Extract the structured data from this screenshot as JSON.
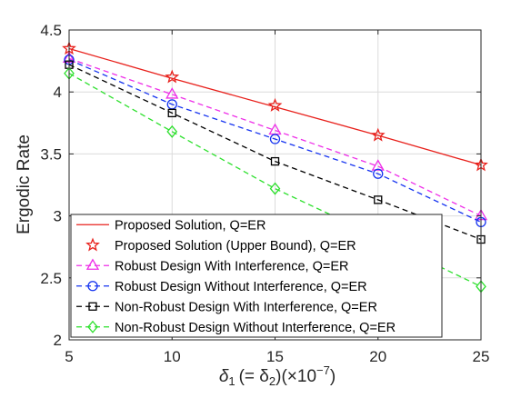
{
  "chart_data": {
    "type": "line",
    "xlabel_parts": {
      "main": "δ",
      "sub1": "1",
      "mid": "(= δ",
      "sub2": "2",
      "close": ")(×10",
      "sup": "−7",
      "end": ")"
    },
    "ylabel": "Ergodic Rate",
    "xlim": [
      5,
      25
    ],
    "ylim": [
      2,
      4.5
    ],
    "x_ticks": [
      5,
      10,
      15,
      20,
      25
    ],
    "y_ticks": [
      2,
      2.5,
      3,
      3.5,
      4,
      4.5
    ],
    "grid": true,
    "legend_position": "bottom-left",
    "x": [
      5,
      10,
      15,
      20,
      25
    ],
    "series": [
      {
        "name": "Proposed Solution, Q=ER",
        "values": [
          4.35,
          4.11,
          3.88,
          3.65,
          3.41
        ],
        "color": "#e8201b",
        "style": "solid",
        "marker": "none"
      },
      {
        "name": "Proposed Solution (Upper Bound), Q=ER",
        "values": [
          4.35,
          4.12,
          3.89,
          3.65,
          3.41
        ],
        "color": "#e8201b",
        "style": "none",
        "marker": "star"
      },
      {
        "name": "Robust Design With Interference, Q=ER",
        "values": [
          4.27,
          3.98,
          3.69,
          3.4,
          3.0
        ],
        "color": "#ee2ee8",
        "style": "dashed",
        "marker": "triangle"
      },
      {
        "name": "Robust Design Without Interference, Q=ER",
        "values": [
          4.26,
          3.9,
          3.62,
          3.34,
          2.95
        ],
        "color": "#1533f0",
        "style": "dashed",
        "marker": "circle"
      },
      {
        "name": "Non-Robust Design With Interference, Q=ER",
        "values": [
          4.22,
          3.83,
          3.44,
          3.13,
          2.81
        ],
        "color": "#000000",
        "style": "dashed",
        "marker": "square"
      },
      {
        "name": "Non-Robust Design Without Interference, Q=ER",
        "values": [
          4.15,
          3.68,
          3.22,
          2.83,
          2.43
        ],
        "color": "#2de02d",
        "style": "dashed",
        "marker": "diamond"
      }
    ]
  }
}
